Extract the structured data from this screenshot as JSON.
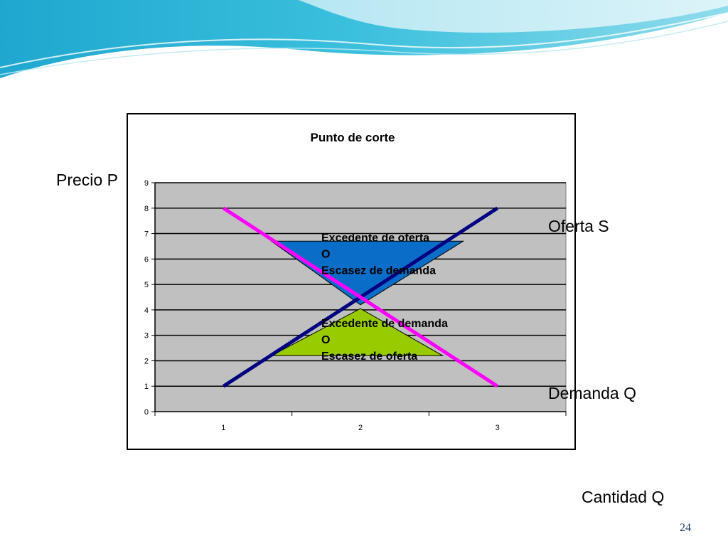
{
  "slide": {
    "ylabel": "Precio P",
    "supply_label": "Oferta S",
    "demand_label": "Demanda Q",
    "xlabel": "Cantidad Q",
    "page_number": "24"
  },
  "colors": {
    "plot_background": "#c0c0c0",
    "supply_line": "#000080",
    "demand_line": "#ff00ff",
    "surplus_fill": "#0a6ec8",
    "shortage_fill": "#99cc00",
    "header_wave_dark": "#1aa0c8",
    "header_wave_light": "#a8e4f0"
  },
  "chart_data": {
    "type": "line",
    "title": "Punto de corte",
    "x": [
      1,
      2,
      3
    ],
    "categories": [
      "1",
      "2",
      "3"
    ],
    "ylim": [
      0,
      9
    ],
    "yticks": [
      "0",
      "1",
      "2",
      "3",
      "4",
      "5",
      "6",
      "7",
      "8",
      "9"
    ],
    "grid": true,
    "series": [
      {
        "key": "supply",
        "values": [
          1,
          4.5,
          8
        ]
      },
      {
        "key": "demand",
        "values": [
          8,
          4.5,
          1
        ]
      }
    ],
    "regions": [
      {
        "key": "surplus",
        "points": [
          [
            1.35,
            6.7
          ],
          [
            2.75,
            6.7
          ],
          [
            2,
            4.2
          ]
        ],
        "annotation": [
          "Excedente de oferta",
          "O",
          "Escasez de demanda"
        ]
      },
      {
        "key": "shortage",
        "points": [
          [
            1.35,
            2.2
          ],
          [
            2.6,
            2.2
          ],
          [
            2,
            4.05
          ]
        ],
        "annotation": [
          "Excedente de demanda",
          "O",
          "Escasez de oferta"
        ]
      }
    ]
  }
}
